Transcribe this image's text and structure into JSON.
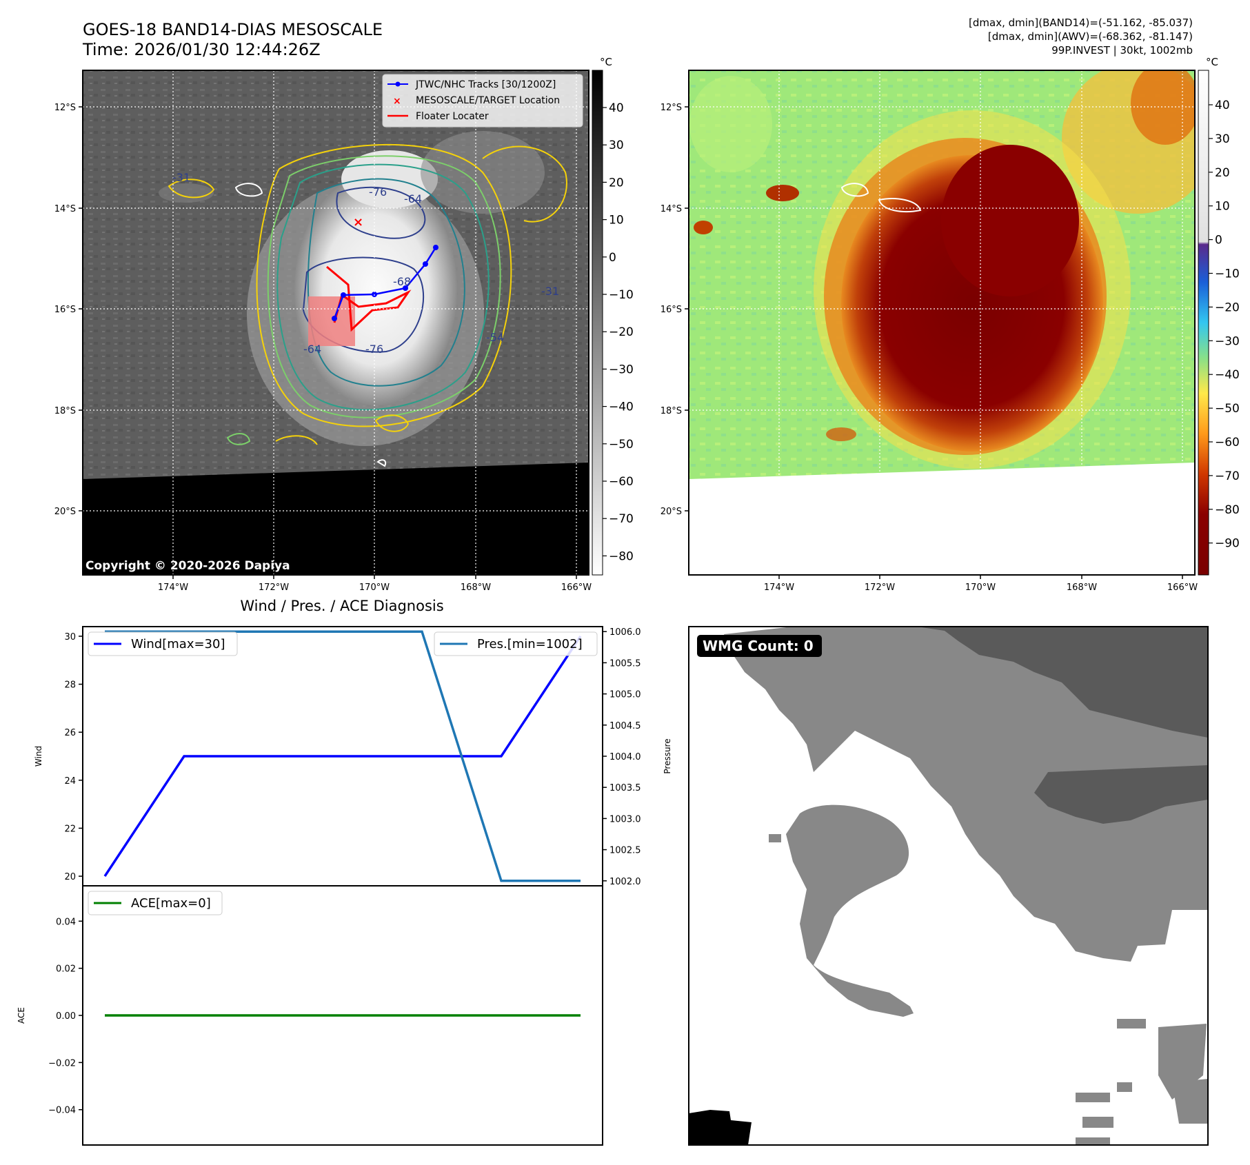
{
  "header": {
    "title_line1": "GOES-18 BAND14-DIAS MESOSCALE",
    "title_line2": "Time: 2026/01/30 12:44:26Z",
    "info_line1": "[dmax, dmin](BAND14)=(-51.162, -85.037)",
    "info_line2": "[dmax, dmin](AWV)=(-68.362, -81.147)",
    "info_line3": "99P.INVEST | 30kt, 1002mb"
  },
  "map_axes": {
    "lat_ticks": [
      "12°S",
      "14°S",
      "16°S",
      "18°S",
      "20°S"
    ],
    "lon_ticks": [
      "174°W",
      "172°W",
      "170°W",
      "168°W",
      "166°W"
    ]
  },
  "ir_panel": {
    "colorbar_unit": "°C",
    "colorbar_ticks": [
      "40",
      "30",
      "20",
      "10",
      "0",
      "−10",
      "−20",
      "−30",
      "−40",
      "−50",
      "−60",
      "−70",
      "−80"
    ],
    "copyright": "Copyright © 2020-2026 Dapiya",
    "legend": [
      {
        "label": "JTWC/NHC Tracks [30/1200Z]",
        "color": "#0000ff"
      },
      {
        "label": "MESOSCALE/TARGET Location",
        "color": "#ff0000"
      },
      {
        "label": "Floater Locater",
        "color": "#ff0000"
      }
    ],
    "contour_labels": [
      "-31",
      "-76",
      "-64",
      "-54",
      "-31",
      "-76",
      "-64",
      "-68"
    ]
  },
  "awv_panel": {
    "colorbar_unit": "°C",
    "colorbar_ticks": [
      "40",
      "30",
      "20",
      "10",
      "0",
      "−10",
      "−20",
      "−30",
      "−40",
      "−50",
      "−60",
      "−70",
      "−80",
      "−90"
    ]
  },
  "wmg_panel": {
    "badge": "WMG Count: 0"
  },
  "chart_data": [
    {
      "type": "line",
      "title": "Wind / Pres. / ACE Diagnosis",
      "x": [
        0,
        1,
        2,
        3,
        4,
        5,
        6
      ],
      "ylabel": "Wind",
      "ylim": [
        19.6,
        30.4
      ],
      "yticks": [
        "20",
        "22",
        "24",
        "26",
        "28",
        "30"
      ],
      "series": [
        {
          "name": "Wind[max=30]",
          "values": [
            20,
            25,
            25,
            25,
            25,
            25,
            30
          ],
          "color": "#0000ff"
        }
      ],
      "y2label": "Pressure",
      "y2lim": [
        1001.92,
        1006.08
      ],
      "y2ticks": [
        "1006.0",
        "1005.5",
        "1005.0",
        "1004.5",
        "1004.0",
        "1003.5",
        "1003.0",
        "1002.5",
        "1002.0"
      ],
      "series2": [
        {
          "name": "Pres.[min=1002]",
          "values": [
            1006,
            1006,
            1006,
            1006,
            1006,
            1002,
            1002
          ],
          "color": "#1f77b4"
        }
      ]
    },
    {
      "type": "line",
      "x": [
        0,
        1,
        2,
        3,
        4,
        5,
        6
      ],
      "ylabel": "ACE",
      "ylim": [
        -0.055,
        0.055
      ],
      "yticks": [
        "0.04",
        "0.02",
        "0.00",
        "−0.02",
        "−0.04"
      ],
      "series": [
        {
          "name": "ACE[max=0]",
          "values": [
            0,
            0,
            0,
            0,
            0,
            0,
            0
          ],
          "color": "#008000"
        }
      ]
    }
  ]
}
